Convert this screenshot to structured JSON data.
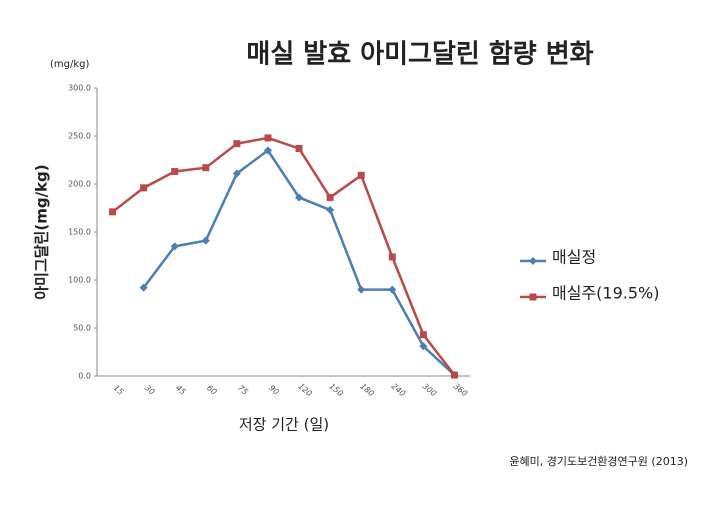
{
  "chart_data": {
    "type": "line",
    "title": "매실 발효 아미그달린 함량 변화",
    "y_unit": "(mg/kg)",
    "y_label": "아미그달린(mg/kg)",
    "x_label": "저장 기간 (일)",
    "source": "윤혜미, 경기도보건환경연구원 (2013)",
    "categories": [
      "15",
      "30",
      "45",
      "60",
      "75",
      "90",
      "120",
      "150",
      "180",
      "240",
      "300",
      "360"
    ],
    "series": [
      {
        "name": "매실정",
        "color": "#4a7eb4",
        "marker": "diamond",
        "values": [
          null,
          92,
          135,
          141,
          211,
          235,
          186,
          173,
          90,
          90,
          31,
          1
        ]
      },
      {
        "name": "매실주(19.5%)",
        "color": "#b94a48",
        "marker": "square",
        "values": [
          171,
          196,
          213,
          217,
          242,
          248,
          237,
          186,
          209,
          124,
          43,
          1
        ]
      }
    ],
    "ylim": [
      0,
      300
    ],
    "yticks": [
      {
        "value": 0,
        "label": "0.0"
      },
      {
        "value": 50,
        "label": "50.0"
      },
      {
        "value": 100,
        "label": "100.0"
      },
      {
        "value": 150,
        "label": "150.0"
      },
      {
        "value": 200,
        "label": "200.0"
      },
      {
        "value": 250,
        "label": "250.0"
      },
      {
        "value": 300,
        "label": "300.0"
      }
    ],
    "legend": "right"
  }
}
